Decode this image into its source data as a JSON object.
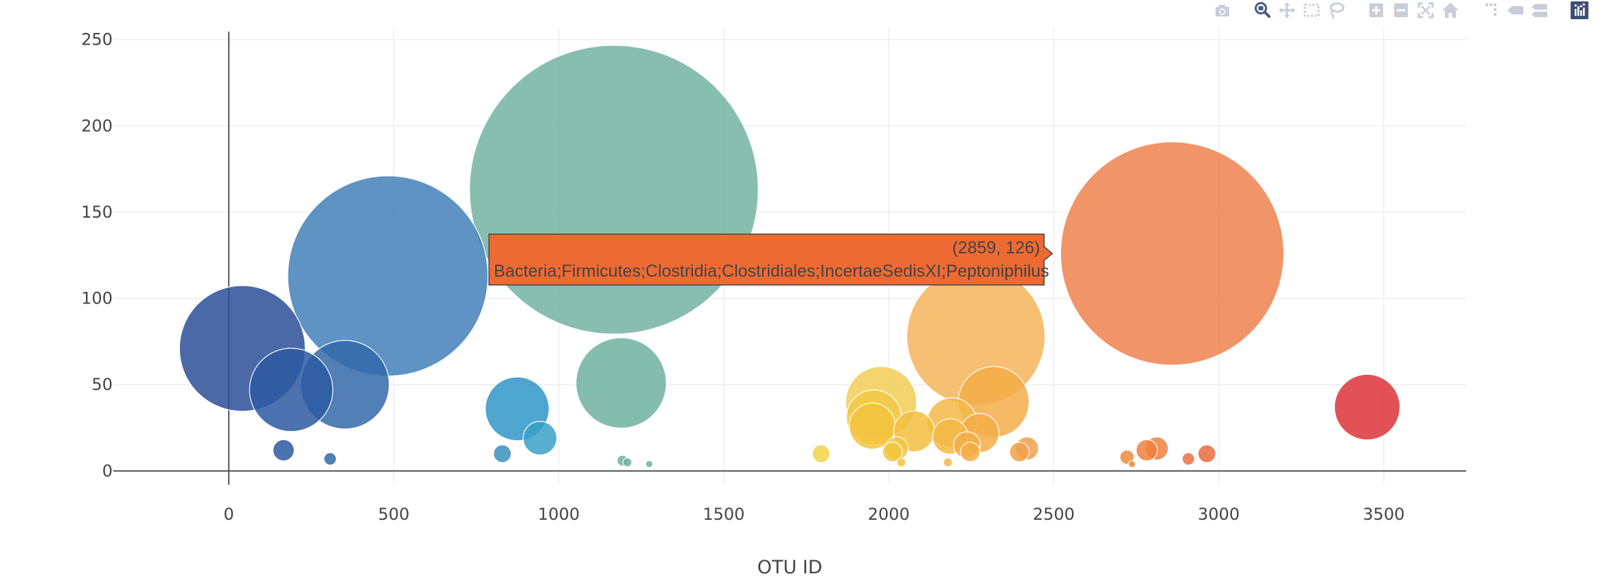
{
  "modebar": {
    "buttons": [
      {
        "name": "camera-icon",
        "title": "Download plot as a png"
      },
      {
        "name": "zoom-icon",
        "title": "Zoom",
        "active": true
      },
      {
        "name": "pan-icon",
        "title": "Pan"
      },
      {
        "name": "box-select-icon",
        "title": "Box Select"
      },
      {
        "name": "lasso-select-icon",
        "title": "Lasso Select"
      },
      {
        "name": "zoom-in-icon",
        "title": "Zoom in"
      },
      {
        "name": "zoom-out-icon",
        "title": "Zoom out"
      },
      {
        "name": "autoscale-icon",
        "title": "Autoscale"
      },
      {
        "name": "reset-axes-icon",
        "title": "Reset axes"
      },
      {
        "name": "spike-lines-icon",
        "title": "Toggle Spike Lines"
      },
      {
        "name": "hover-closest-icon",
        "title": "Show closest data on hover"
      },
      {
        "name": "hover-compare-icon",
        "title": "Compare data on hover"
      },
      {
        "name": "plotly-logo-icon",
        "title": "Produced with Plotly"
      }
    ],
    "colors": {
      "icon": "#c7cdd9",
      "active": "#455a80",
      "logo": "#3f4f75"
    }
  },
  "chart_data": {
    "type": "scatter",
    "mode": "bubble",
    "title": "",
    "xlabel": "OTU ID",
    "ylabel": "",
    "xlim": [
      -350,
      3750
    ],
    "ylim": [
      -8,
      257
    ],
    "xticks": [
      0,
      500,
      1000,
      1500,
      2000,
      2500,
      3000,
      3500
    ],
    "yticks": [
      0,
      50,
      100,
      150,
      200,
      250
    ],
    "grid": true,
    "colorscale": "Earth",
    "points": [
      {
        "x": 41,
        "y": 71,
        "c": "#2c4f96"
      },
      {
        "x": 189,
        "y": 47,
        "c": "#2d5ba1"
      },
      {
        "x": 352,
        "y": 50,
        "c": "#3268a9"
      },
      {
        "x": 482,
        "y": 113,
        "c": "#3a7bb6"
      },
      {
        "x": 166,
        "y": 12,
        "c": "#2d5ba1"
      },
      {
        "x": 307,
        "y": 7,
        "c": "#3268a9"
      },
      {
        "x": 874,
        "y": 36,
        "c": "#2f97c8"
      },
      {
        "x": 943,
        "y": 19,
        "c": "#3aa0c8"
      },
      {
        "x": 829,
        "y": 10,
        "c": "#3a8fc0"
      },
      {
        "x": 1167,
        "y": 163,
        "c": "#6eb09f"
      },
      {
        "x": 1189,
        "y": 51,
        "c": "#6eb09f"
      },
      {
        "x": 1193,
        "y": 6,
        "c": "#6eb09f"
      },
      {
        "x": 1208,
        "y": 5,
        "c": "#6eb09f"
      },
      {
        "x": 1274,
        "y": 4,
        "c": "#6eb09f"
      },
      {
        "x": 1795,
        "y": 10,
        "c": "#f1d444"
      },
      {
        "x": 1977,
        "y": 40,
        "c": "#f2cc55"
      },
      {
        "x": 1955,
        "y": 31,
        "c": "#f2c845"
      },
      {
        "x": 1950,
        "y": 26,
        "c": "#f2c43e"
      },
      {
        "x": 2011,
        "y": 11,
        "c": "#f2c43e"
      },
      {
        "x": 2024,
        "y": 13,
        "c": "#f2c43e"
      },
      {
        "x": 2038,
        "y": 5,
        "c": "#f2c43e"
      },
      {
        "x": 2077,
        "y": 23,
        "c": "#f3be40"
      },
      {
        "x": 2191,
        "y": 28,
        "c": "#f3b845"
      },
      {
        "x": 2186,
        "y": 20,
        "c": "#f3b845"
      },
      {
        "x": 2264,
        "y": 78,
        "c": "#f4b45a"
      },
      {
        "x": 2318,
        "y": 40,
        "c": "#f4ad48"
      },
      {
        "x": 2275,
        "y": 22,
        "c": "#f4ad48"
      },
      {
        "x": 2237,
        "y": 15,
        "c": "#f4ad48"
      },
      {
        "x": 2247,
        "y": 11,
        "c": "#f4ad48"
      },
      {
        "x": 2179,
        "y": 5,
        "c": "#f3b845"
      },
      {
        "x": 2419,
        "y": 13,
        "c": "#f0a04a"
      },
      {
        "x": 2396,
        "y": 11,
        "c": "#f0a04a"
      },
      {
        "x": 2859,
        "y": 126,
        "c": "#ee7c45"
      },
      {
        "x": 2722,
        "y": 8,
        "c": "#ee8a3d"
      },
      {
        "x": 2737,
        "y": 4,
        "c": "#ee8a3d"
      },
      {
        "x": 2812,
        "y": 13,
        "c": "#ee8040"
      },
      {
        "x": 2782,
        "y": 12,
        "c": "#ee8040"
      },
      {
        "x": 2908,
        "y": 7,
        "c": "#ec7040"
      },
      {
        "x": 2964,
        "y": 10,
        "c": "#ea6a40"
      },
      {
        "x": 3450,
        "y": 37,
        "c": "#dd3338"
      }
    ],
    "hover": {
      "x": 2859,
      "y": 126,
      "coords": "(2859, 126)",
      "label": "Bacteria;Firmicutes;Clostridia;Clostridiales;IncertaeSedisXI;Peptoniphilus",
      "bgcolor": "#ee6a33",
      "bordercolor": "#444444"
    }
  }
}
